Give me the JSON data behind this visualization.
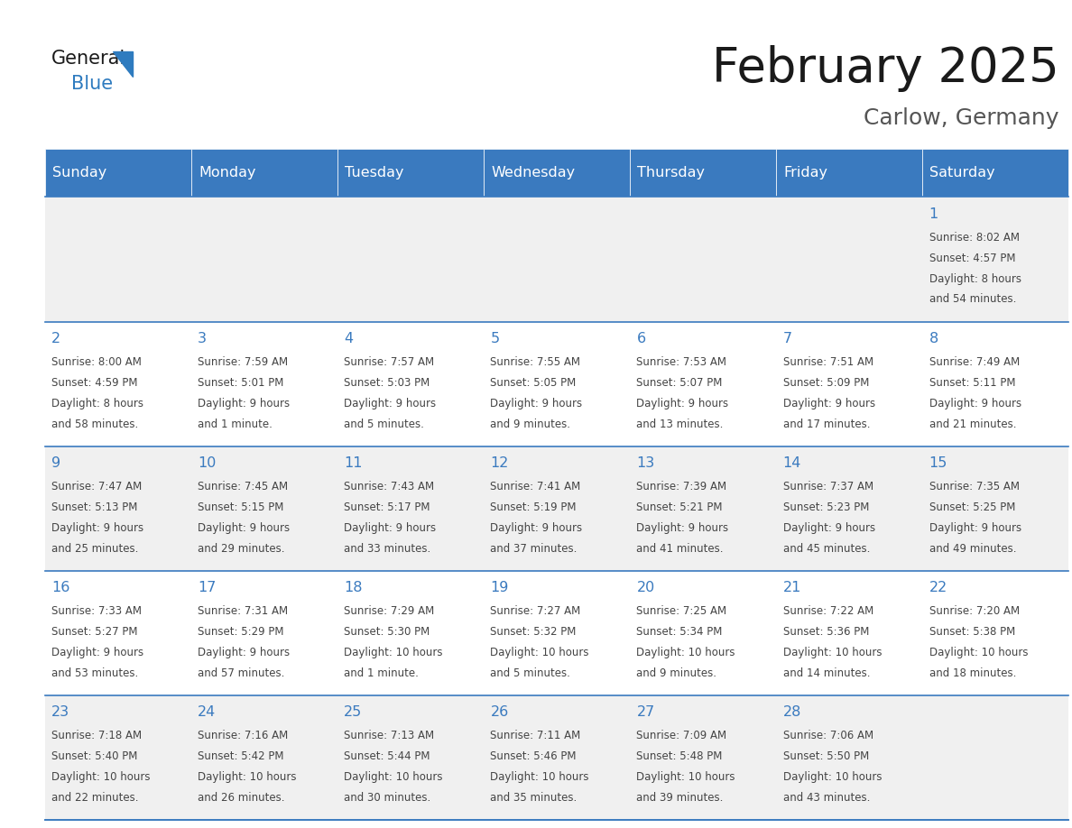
{
  "title": "February 2025",
  "subtitle": "Carlow, Germany",
  "days_of_week": [
    "Sunday",
    "Monday",
    "Tuesday",
    "Wednesday",
    "Thursday",
    "Friday",
    "Saturday"
  ],
  "header_bg": "#3a7abf",
  "header_text": "#ffffff",
  "row_bg_odd": "#f0f0f0",
  "row_bg_even": "#ffffff",
  "border_color": "#3a7abf",
  "day_number_color": "#3a7abf",
  "cell_text_color": "#444444",
  "title_color": "#1a1a1a",
  "subtitle_color": "#555555",
  "logo_general_color": "#1a1a1a",
  "logo_blue_color": "#2e7bbf",
  "calendar": [
    [
      null,
      null,
      null,
      null,
      null,
      null,
      1
    ],
    [
      2,
      3,
      4,
      5,
      6,
      7,
      8
    ],
    [
      9,
      10,
      11,
      12,
      13,
      14,
      15
    ],
    [
      16,
      17,
      18,
      19,
      20,
      21,
      22
    ],
    [
      23,
      24,
      25,
      26,
      27,
      28,
      null
    ]
  ],
  "cell_data": {
    "1": {
      "sunrise": "8:02 AM",
      "sunset": "4:57 PM",
      "daylight_l1": "Daylight: 8 hours",
      "daylight_l2": "and 54 minutes."
    },
    "2": {
      "sunrise": "8:00 AM",
      "sunset": "4:59 PM",
      "daylight_l1": "Daylight: 8 hours",
      "daylight_l2": "and 58 minutes."
    },
    "3": {
      "sunrise": "7:59 AM",
      "sunset": "5:01 PM",
      "daylight_l1": "Daylight: 9 hours",
      "daylight_l2": "and 1 minute."
    },
    "4": {
      "sunrise": "7:57 AM",
      "sunset": "5:03 PM",
      "daylight_l1": "Daylight: 9 hours",
      "daylight_l2": "and 5 minutes."
    },
    "5": {
      "sunrise": "7:55 AM",
      "sunset": "5:05 PM",
      "daylight_l1": "Daylight: 9 hours",
      "daylight_l2": "and 9 minutes."
    },
    "6": {
      "sunrise": "7:53 AM",
      "sunset": "5:07 PM",
      "daylight_l1": "Daylight: 9 hours",
      "daylight_l2": "and 13 minutes."
    },
    "7": {
      "sunrise": "7:51 AM",
      "sunset": "5:09 PM",
      "daylight_l1": "Daylight: 9 hours",
      "daylight_l2": "and 17 minutes."
    },
    "8": {
      "sunrise": "7:49 AM",
      "sunset": "5:11 PM",
      "daylight_l1": "Daylight: 9 hours",
      "daylight_l2": "and 21 minutes."
    },
    "9": {
      "sunrise": "7:47 AM",
      "sunset": "5:13 PM",
      "daylight_l1": "Daylight: 9 hours",
      "daylight_l2": "and 25 minutes."
    },
    "10": {
      "sunrise": "7:45 AM",
      "sunset": "5:15 PM",
      "daylight_l1": "Daylight: 9 hours",
      "daylight_l2": "and 29 minutes."
    },
    "11": {
      "sunrise": "7:43 AM",
      "sunset": "5:17 PM",
      "daylight_l1": "Daylight: 9 hours",
      "daylight_l2": "and 33 minutes."
    },
    "12": {
      "sunrise": "7:41 AM",
      "sunset": "5:19 PM",
      "daylight_l1": "Daylight: 9 hours",
      "daylight_l2": "and 37 minutes."
    },
    "13": {
      "sunrise": "7:39 AM",
      "sunset": "5:21 PM",
      "daylight_l1": "Daylight: 9 hours",
      "daylight_l2": "and 41 minutes."
    },
    "14": {
      "sunrise": "7:37 AM",
      "sunset": "5:23 PM",
      "daylight_l1": "Daylight: 9 hours",
      "daylight_l2": "and 45 minutes."
    },
    "15": {
      "sunrise": "7:35 AM",
      "sunset": "5:25 PM",
      "daylight_l1": "Daylight: 9 hours",
      "daylight_l2": "and 49 minutes."
    },
    "16": {
      "sunrise": "7:33 AM",
      "sunset": "5:27 PM",
      "daylight_l1": "Daylight: 9 hours",
      "daylight_l2": "and 53 minutes."
    },
    "17": {
      "sunrise": "7:31 AM",
      "sunset": "5:29 PM",
      "daylight_l1": "Daylight: 9 hours",
      "daylight_l2": "and 57 minutes."
    },
    "18": {
      "sunrise": "7:29 AM",
      "sunset": "5:30 PM",
      "daylight_l1": "Daylight: 10 hours",
      "daylight_l2": "and 1 minute."
    },
    "19": {
      "sunrise": "7:27 AM",
      "sunset": "5:32 PM",
      "daylight_l1": "Daylight: 10 hours",
      "daylight_l2": "and 5 minutes."
    },
    "20": {
      "sunrise": "7:25 AM",
      "sunset": "5:34 PM",
      "daylight_l1": "Daylight: 10 hours",
      "daylight_l2": "and 9 minutes."
    },
    "21": {
      "sunrise": "7:22 AM",
      "sunset": "5:36 PM",
      "daylight_l1": "Daylight: 10 hours",
      "daylight_l2": "and 14 minutes."
    },
    "22": {
      "sunrise": "7:20 AM",
      "sunset": "5:38 PM",
      "daylight_l1": "Daylight: 10 hours",
      "daylight_l2": "and 18 minutes."
    },
    "23": {
      "sunrise": "7:18 AM",
      "sunset": "5:40 PM",
      "daylight_l1": "Daylight: 10 hours",
      "daylight_l2": "and 22 minutes."
    },
    "24": {
      "sunrise": "7:16 AM",
      "sunset": "5:42 PM",
      "daylight_l1": "Daylight: 10 hours",
      "daylight_l2": "and 26 minutes."
    },
    "25": {
      "sunrise": "7:13 AM",
      "sunset": "5:44 PM",
      "daylight_l1": "Daylight: 10 hours",
      "daylight_l2": "and 30 minutes."
    },
    "26": {
      "sunrise": "7:11 AM",
      "sunset": "5:46 PM",
      "daylight_l1": "Daylight: 10 hours",
      "daylight_l2": "and 35 minutes."
    },
    "27": {
      "sunrise": "7:09 AM",
      "sunset": "5:48 PM",
      "daylight_l1": "Daylight: 10 hours",
      "daylight_l2": "and 39 minutes."
    },
    "28": {
      "sunrise": "7:06 AM",
      "sunset": "5:50 PM",
      "daylight_l1": "Daylight: 10 hours",
      "daylight_l2": "and 43 minutes."
    }
  },
  "fig_width": 11.88,
  "fig_height": 9.18,
  "dpi": 100
}
